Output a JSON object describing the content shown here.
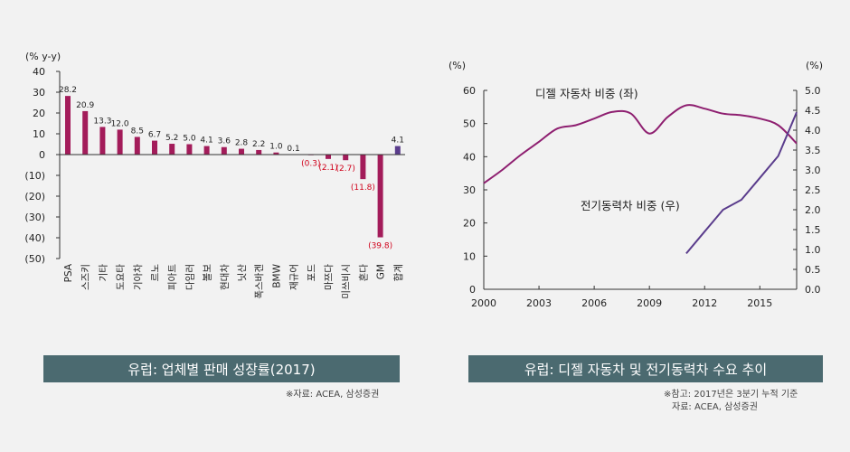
{
  "chart_data": [
    {
      "type": "bar",
      "yunit": "(% y-y)",
      "ylim": [
        -50,
        40
      ],
      "yticks": [
        "40",
        "30",
        "20",
        "10",
        "0",
        "(10)",
        "(20)",
        "(30)",
        "(40)",
        "(50)"
      ],
      "categories": [
        "PSA",
        "스즈키",
        "기타",
        "도요타",
        "기아차",
        "르노",
        "피아트",
        "다임러",
        "볼보",
        "현대차",
        "닛산",
        "폭스바겐",
        "BMW",
        "재규어",
        "포드",
        "마쯔다",
        "미쓰비시",
        "혼다",
        "GM",
        "합계"
      ],
      "values": [
        28.2,
        20.9,
        13.3,
        12.0,
        8.5,
        6.7,
        5.2,
        5.0,
        4.1,
        3.6,
        2.8,
        2.2,
        1.0,
        0.1,
        -0.3,
        -2.1,
        -2.7,
        -11.8,
        -39.8,
        4.1
      ],
      "labels": [
        "28.2",
        "20.9",
        "13.3",
        "12.0",
        "8.5",
        "6.7",
        "5.2",
        "5.0",
        "4.1",
        "3.6",
        "2.8",
        "2.2",
        "1.0",
        "0.1",
        "(0.3)",
        "(2.1)",
        "(2.7)",
        "(11.8)",
        "(39.8)",
        "4.1"
      ],
      "colors": {
        "bar": "#a31c5a",
        "total": "#5a3c8c",
        "negative_label": "#d0021b"
      },
      "title": "유럽: 업체별  판매 성장률(2017)",
      "source": "※자료: ACEA, 삼성증권"
    },
    {
      "type": "line",
      "left_unit": "(%)",
      "right_unit": "(%)",
      "xlim": [
        2000,
        2017
      ],
      "xticks": [
        "2000",
        "2003",
        "2006",
        "2009",
        "2012",
        "2015"
      ],
      "left_ylim": [
        0,
        60
      ],
      "left_yticks": [
        "60",
        "50",
        "40",
        "30",
        "20",
        "10",
        "0"
      ],
      "right_ylim": [
        0,
        5
      ],
      "right_yticks": [
        "5.0",
        "4.5",
        "4.0",
        "3.5",
        "3.0",
        "2.5",
        "2.0",
        "1.5",
        "1.0",
        "0.5",
        "0.0"
      ],
      "series": [
        {
          "name": "디젤 자동차 비중 (좌)",
          "axis": "left",
          "color": "#8e1f70",
          "x": [
            2000,
            2001,
            2002,
            2003,
            2004,
            2005,
            2006,
            2007,
            2008,
            2009,
            2010,
            2011,
            2012,
            2013,
            2014,
            2015,
            2016,
            2017
          ],
          "y": [
            32,
            36,
            40.5,
            44.5,
            48.5,
            49.5,
            51.5,
            53.5,
            53,
            47,
            52,
            55.5,
            54.5,
            53,
            52.5,
            51.5,
            49.5,
            44
          ]
        },
        {
          "name": "전기동력차 비중 (우)",
          "axis": "right",
          "color": "#5a3c8c",
          "x": [
            2011,
            2012,
            2013,
            2014,
            2015,
            2016,
            2017
          ],
          "y": [
            0.9,
            1.45,
            2.0,
            2.25,
            2.8,
            3.35,
            4.45
          ]
        }
      ],
      "title": "유럽: 디젤 자동차 및 전기동력차 수요 추이",
      "notes": [
        "※참고: 2017년은 3분기 누적 기준",
        "자료: ACEA, 삼성증권"
      ]
    }
  ]
}
